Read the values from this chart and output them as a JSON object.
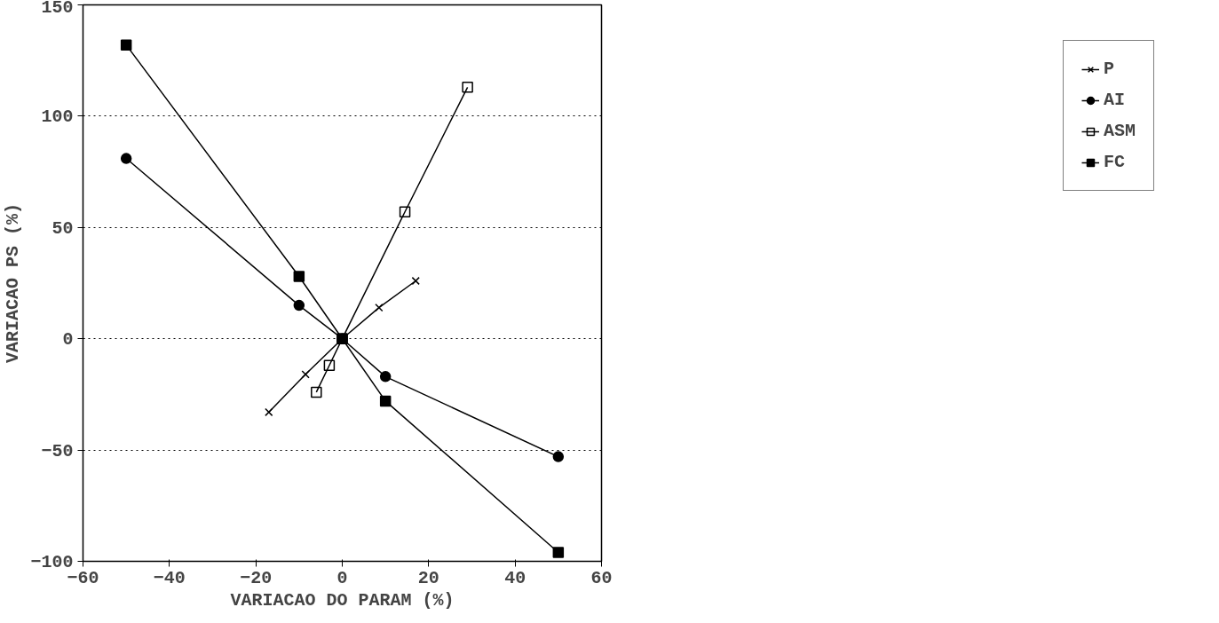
{
  "chart_data": {
    "type": "line",
    "xlabel": "VARIACAO DO PARAM (%)",
    "ylabel": "VARIACAO PS (%)",
    "xlim": [
      -60,
      60
    ],
    "xticks": [
      -60,
      -40,
      -20,
      0,
      20,
      40,
      60
    ],
    "ylim": [
      -100,
      150
    ],
    "yticks": [
      -100,
      -50,
      0,
      50,
      100,
      150
    ],
    "grid": "y",
    "legend": "right",
    "series": [
      {
        "name": "P",
        "color": "#000000",
        "marker": "cross",
        "x": [
          -17,
          -8.5,
          0,
          8.5,
          17
        ],
        "values": [
          -33,
          -16,
          0,
          14,
          26
        ]
      },
      {
        "name": "AI",
        "color": "#000000",
        "marker": "circle",
        "x": [
          -50,
          -10,
          0,
          10,
          50
        ],
        "values": [
          81,
          15,
          0,
          -17,
          -53
        ]
      },
      {
        "name": "ASM",
        "color": "#000000",
        "marker": "square_open",
        "x": [
          -6,
          -3,
          0,
          14.5,
          29
        ],
        "values": [
          -24,
          -12,
          0,
          57,
          113
        ]
      },
      {
        "name": "FC",
        "color": "#000000",
        "marker": "square",
        "x": [
          -50,
          -10,
          0,
          10,
          50
        ],
        "values": [
          132,
          28,
          0,
          -28,
          -96
        ]
      }
    ]
  }
}
